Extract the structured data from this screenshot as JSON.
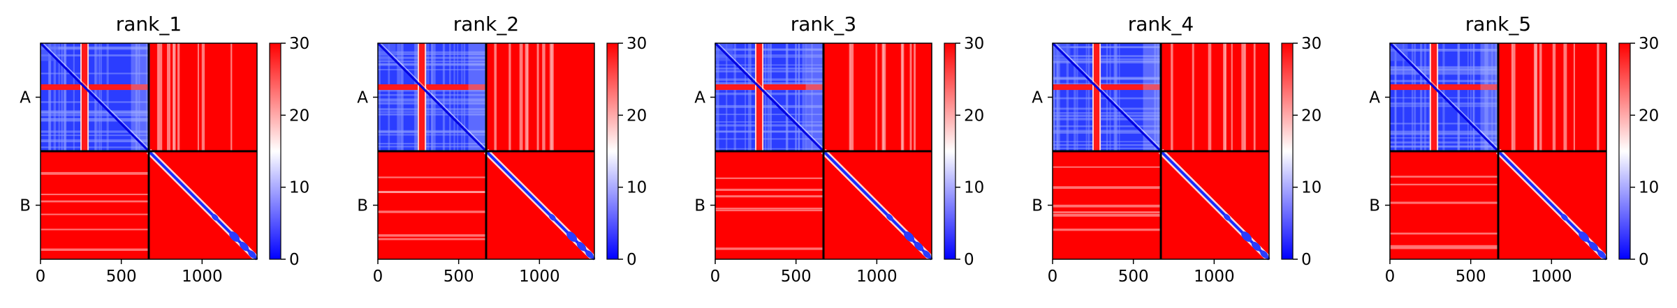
{
  "chart_data": {
    "type": "heatmap",
    "description_colormap": "bwr",
    "colorbar": {
      "min": 0,
      "max": 30,
      "ticks": [
        0,
        10,
        20,
        30
      ],
      "colors": {
        "low": "#0000ff",
        "mid": "#ffffff",
        "high": "#ff0000"
      }
    },
    "x_ticks": [
      0,
      500,
      1000
    ],
    "x_range": [
      0,
      1340
    ],
    "chain_boundary": 670,
    "y_labels": [
      "A",
      "B"
    ],
    "panels": [
      {
        "title": "rank_1"
      },
      {
        "title": "rank_2"
      },
      {
        "title": "rank_3"
      },
      {
        "title": "rank_4"
      },
      {
        "title": "rank_5"
      }
    ]
  }
}
